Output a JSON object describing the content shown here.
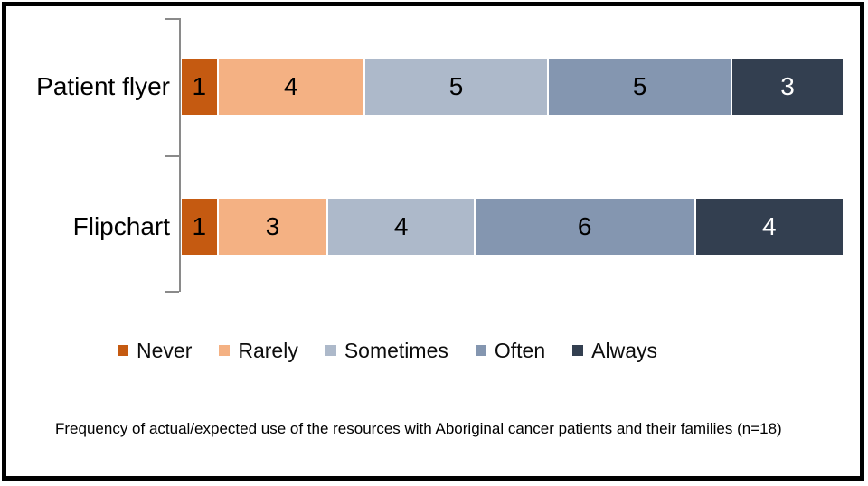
{
  "chart_data": {
    "type": "bar",
    "orientation": "horizontal",
    "stacked": true,
    "categories": [
      "Patient flyer",
      "Flipchart"
    ],
    "series": [
      {
        "name": "Never",
        "color": "#C55A11",
        "values": [
          1,
          1
        ]
      },
      {
        "name": "Rarely",
        "color": "#F4B183",
        "values": [
          4,
          3
        ]
      },
      {
        "name": "Sometimes",
        "color": "#ADB9CA",
        "values": [
          5,
          4
        ]
      },
      {
        "name": "Often",
        "color": "#8496B0",
        "values": [
          5,
          6
        ]
      },
      {
        "name": "Always",
        "color": "#333F50",
        "values": [
          3,
          4
        ]
      }
    ],
    "xlim": [
      0,
      18
    ],
    "value_labels": true,
    "label_color_default": "#000000",
    "label_color_on_dark": "#FFFFFF",
    "legend_position": "bottom",
    "grid": false,
    "axis_color": "#8a8a8a",
    "title": "",
    "xlabel": "",
    "ylabel": ""
  },
  "caption": {
    "text": "Frequency of actual/expected use of the resources with Aboriginal cancer patients and their families (n=18)"
  }
}
